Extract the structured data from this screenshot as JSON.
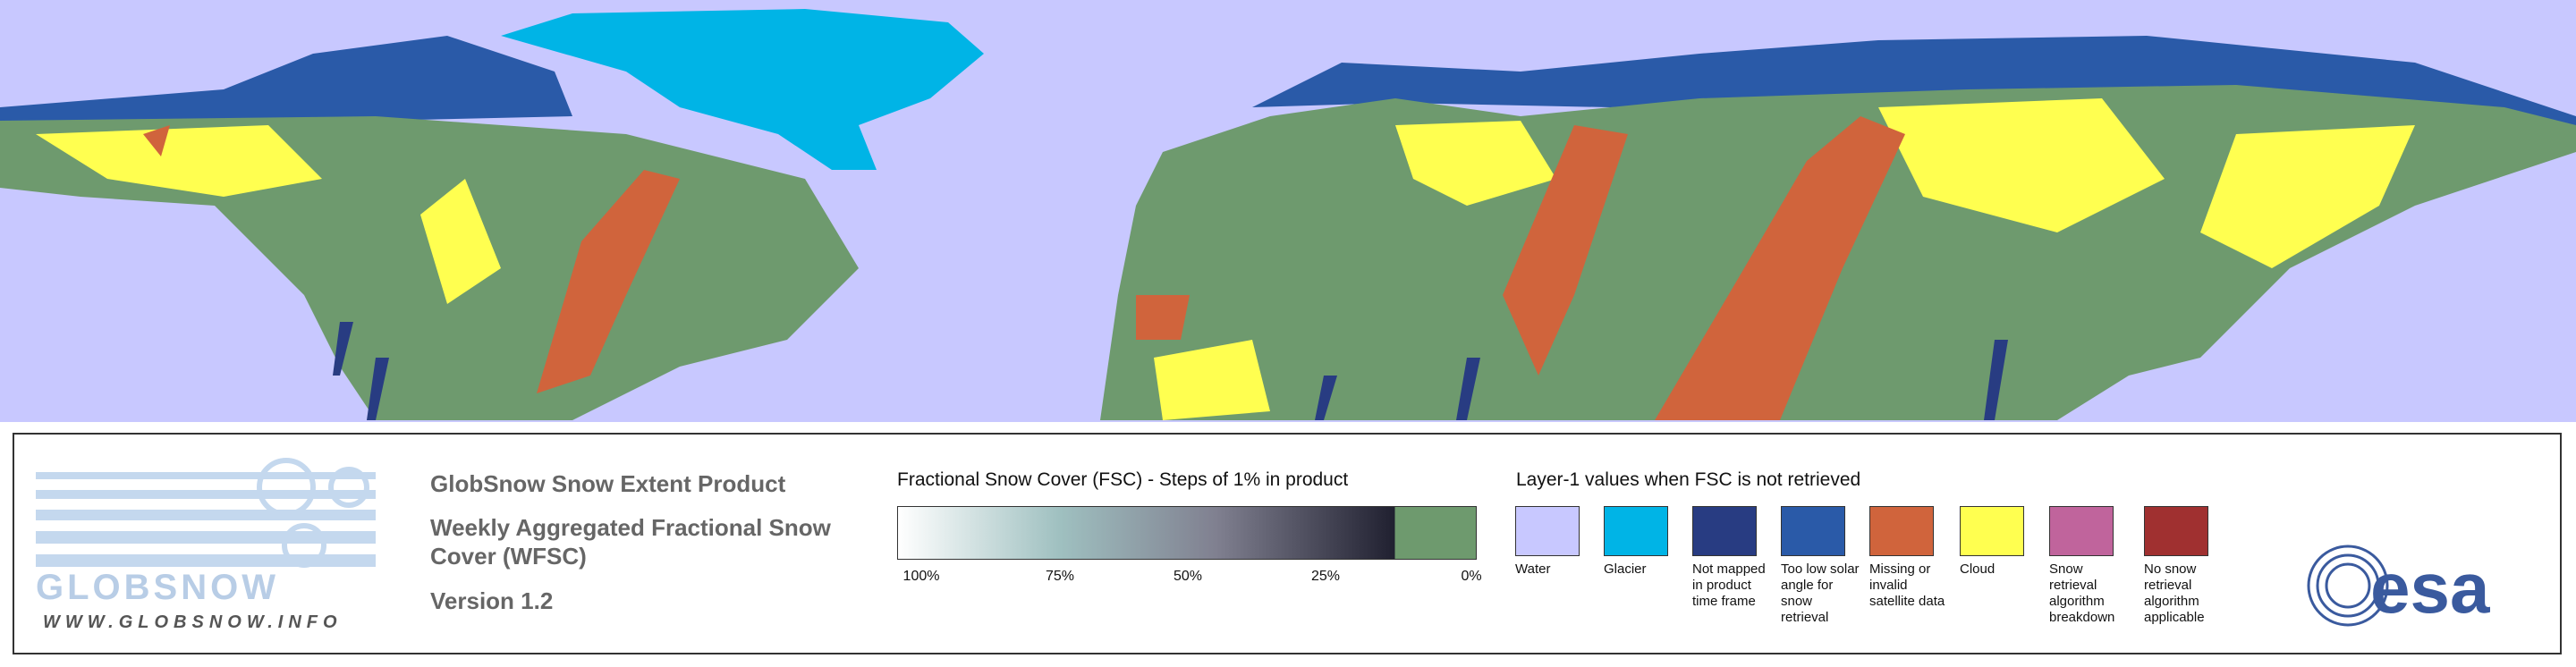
{
  "logo": {
    "wordmark": "GLOBSNOW",
    "url": "WWW.GLOBSNOW.INFO"
  },
  "product": {
    "title": "GlobSnow Snow Extent Product",
    "subtitle": "Weekly Aggregated Fractional Snow Cover (WFSC)",
    "version": "Version 1.2"
  },
  "fsc_legend": {
    "title": "Fractional Snow Cover (FSC) - Steps of 1% in product",
    "ticks": [
      "100%",
      "75%",
      "50%",
      "25%",
      "0%"
    ]
  },
  "layer1_legend": {
    "title": "Layer-1 values when FSC is not retrieved",
    "items": [
      {
        "label": "Water",
        "color": "#c8c8ff"
      },
      {
        "label": "Glacier",
        "color": "#00b4e6"
      },
      {
        "label": "Not mapped in product time frame",
        "color": "#283c82"
      },
      {
        "label": "Too low solar angle for snow retrieval",
        "color": "#2a5aa8"
      },
      {
        "label": "Missing or invalid satellite data",
        "color": "#d0643c"
      },
      {
        "label": "Cloud",
        "color": "#ffff50"
      },
      {
        "label": "Snow retrieval algorithm breakdown",
        "color": "#c0649c"
      },
      {
        "label": "No snow retrieval algorithm applicable",
        "color": "#a03030"
      }
    ]
  },
  "agency": "esa"
}
